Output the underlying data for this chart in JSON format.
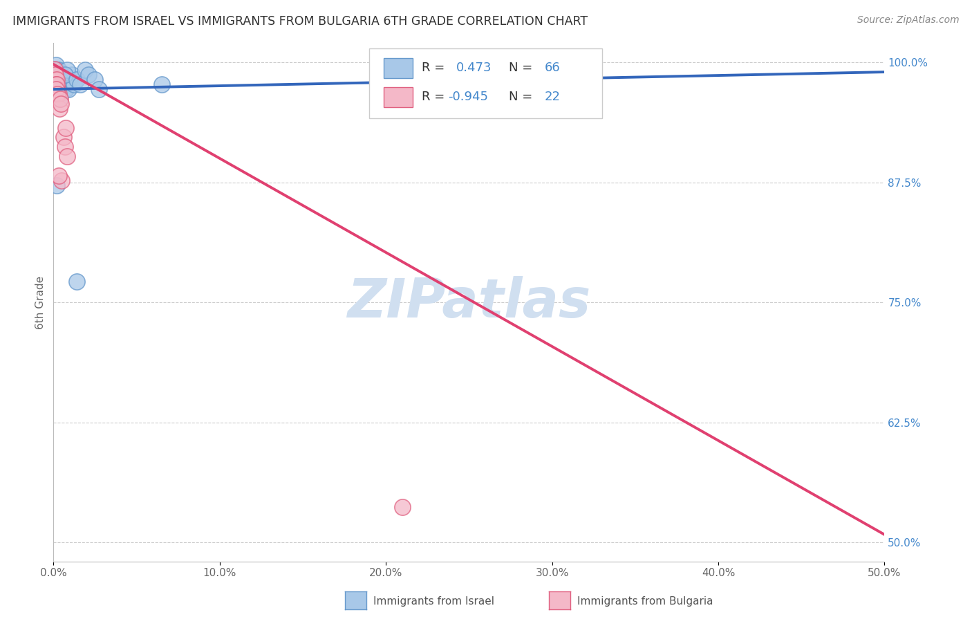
{
  "title": "IMMIGRANTS FROM ISRAEL VS IMMIGRANTS FROM BULGARIA 6TH GRADE CORRELATION CHART",
  "source_text": "Source: ZipAtlas.com",
  "ylabel": "6th Grade",
  "right_yticks": [
    1.0,
    0.875,
    0.75,
    0.625,
    0.5
  ],
  "right_yticklabels": [
    "100.0%",
    "87.5%",
    "75.0%",
    "62.5%",
    "50.0%"
  ],
  "xlim": [
    0.0,
    0.5
  ],
  "ylim": [
    0.48,
    1.02
  ],
  "israel_R": 0.473,
  "israel_N": 66,
  "bulgaria_R": -0.945,
  "bulgaria_N": 22,
  "israel_color": "#a8c8e8",
  "bulgaria_color": "#f4b8c8",
  "israel_edge_color": "#6699cc",
  "bulgaria_edge_color": "#e06080",
  "israel_line_color": "#3366bb",
  "bulgaria_line_color": "#e04070",
  "watermark_color": "#d0dff0",
  "background_color": "#ffffff",
  "grid_color": "#cccccc",
  "title_color": "#333333",
  "right_axis_color": "#4488cc",
  "israel_scatter_x": [
    0.0005,
    0.001,
    0.0008,
    0.0015,
    0.001,
    0.0005,
    0.002,
    0.0015,
    0.001,
    0.0005,
    0.0025,
    0.0015,
    0.001,
    0.002,
    0.0005,
    0.003,
    0.0015,
    0.001,
    0.0025,
    0.0035,
    0.001,
    0.0005,
    0.0015,
    0.002,
    0.001,
    0.0015,
    0.0005,
    0.004,
    0.0025,
    0.002,
    0.001,
    0.0005,
    0.0015,
    0.003,
    0.0045,
    0.002,
    0.0015,
    0.001,
    0.0025,
    0.0035,
    0.005,
    0.004,
    0.0015,
    0.001,
    0.002,
    0.006,
    0.0075,
    0.0045,
    0.003,
    0.0015,
    0.009,
    0.01,
    0.011,
    0.0125,
    0.008,
    0.007,
    0.014,
    0.016,
    0.002,
    0.0035,
    0.019,
    0.021,
    0.025,
    0.065,
    0.014,
    0.0275
  ],
  "israel_scatter_y": [
    0.993,
    0.984,
    0.972,
    0.992,
    0.988,
    0.978,
    0.982,
    0.997,
    0.974,
    0.968,
    0.992,
    0.982,
    0.977,
    0.973,
    0.992,
    0.987,
    0.977,
    0.972,
    0.987,
    0.982,
    0.977,
    0.972,
    0.987,
    0.982,
    0.977,
    0.972,
    0.992,
    0.982,
    0.977,
    0.987,
    0.967,
    0.977,
    0.972,
    0.992,
    0.987,
    0.982,
    0.977,
    0.972,
    0.987,
    0.982,
    0.977,
    0.972,
    0.992,
    0.987,
    0.982,
    0.977,
    0.972,
    0.987,
    0.982,
    0.977,
    0.972,
    0.982,
    0.987,
    0.977,
    0.992,
    0.987,
    0.982,
    0.977,
    0.872,
    0.962,
    0.992,
    0.987,
    0.982,
    0.977,
    0.772,
    0.972
  ],
  "bulgaria_scatter_x": [
    0.0005,
    0.001,
    0.0005,
    0.0015,
    0.001,
    0.002,
    0.0015,
    0.0025,
    0.003,
    0.002,
    0.0015,
    0.0025,
    0.0035,
    0.005,
    0.004,
    0.006,
    0.0045,
    0.007,
    0.0075,
    0.008,
    0.21,
    0.003
  ],
  "bulgaria_scatter_y": [
    0.993,
    0.982,
    0.977,
    0.972,
    0.987,
    0.982,
    0.977,
    0.972,
    0.967,
    0.977,
    0.972,
    0.967,
    0.952,
    0.877,
    0.962,
    0.922,
    0.957,
    0.912,
    0.932,
    0.902,
    0.537,
    0.882
  ],
  "israel_line_x": [
    0.0,
    0.5
  ],
  "israel_line_y": [
    0.972,
    0.99
  ],
  "bulgaria_line_x": [
    0.0,
    0.5
  ],
  "bulgaria_line_y": [
    0.998,
    0.508
  ],
  "x_ticks": [
    0.0,
    0.1,
    0.2,
    0.3,
    0.4,
    0.5
  ],
  "x_ticklabels": [
    "0.0%",
    "10.0%",
    "20.0%",
    "30.0%",
    "40.0%",
    "50.0%"
  ]
}
